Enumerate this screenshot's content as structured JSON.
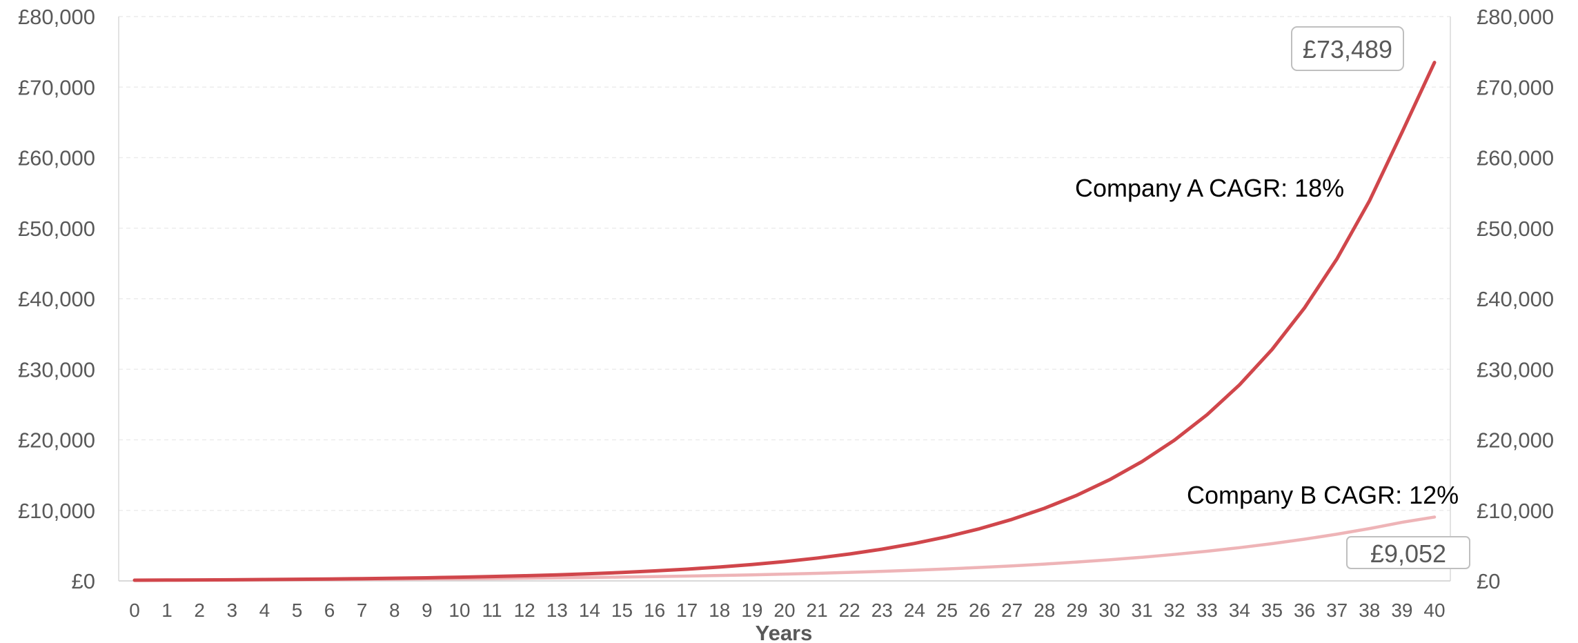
{
  "chart_data": {
    "type": "line",
    "xlabel": "Years",
    "ylim": [
      0,
      80000
    ],
    "yticks": [
      "£0",
      "£10,000",
      "£20,000",
      "£30,000",
      "£40,000",
      "£50,000",
      "£60,000",
      "£70,000",
      "£80,000"
    ],
    "y2ticks": [
      "£0",
      "£10,000",
      "£20,000",
      "£30,000",
      "£40,000",
      "£50,000",
      "£60,000",
      "£70,000",
      "£80,000"
    ],
    "x": [
      0,
      1,
      2,
      3,
      4,
      5,
      6,
      7,
      8,
      9,
      10,
      11,
      12,
      13,
      14,
      15,
      16,
      17,
      18,
      19,
      20,
      21,
      22,
      23,
      24,
      25,
      26,
      27,
      28,
      29,
      30,
      31,
      32,
      33,
      34,
      35,
      36,
      37,
      38,
      39,
      40
    ],
    "grid": true,
    "series": [
      {
        "name": "Company A CAGR: 18%",
        "color": "#d0464b",
        "values": [
          100,
          118,
          139,
          164,
          194,
          229,
          270,
          319,
          376,
          444,
          523,
          618,
          729,
          860,
          1015,
          1197,
          1413,
          1667,
          1967,
          2321,
          2739,
          3232,
          3814,
          4500,
          5310,
          6266,
          7394,
          8725,
          10295,
          12148,
          14335,
          16915,
          19960,
          23553,
          27792,
          32795,
          38698,
          45664,
          53883,
          63582,
          73489
        ]
      },
      {
        "name": "Company B CAGR: 12%",
        "color": "#eeb4b7",
        "values": [
          100,
          112,
          125,
          140,
          157,
          176,
          197,
          221,
          248,
          277,
          311,
          348,
          390,
          436,
          489,
          547,
          613,
          687,
          769,
          861,
          965,
          1080,
          1210,
          1355,
          1518,
          1700,
          1904,
          2132,
          2388,
          2675,
          2996,
          3355,
          3758,
          4209,
          4714,
          5280,
          5914,
          6623,
          7418,
          8308,
          9052
        ]
      }
    ],
    "annotations": [
      {
        "text": "Company A CAGR: 18%"
      },
      {
        "text": "Company B CAGR: 12%"
      }
    ],
    "end_labels": [
      "£73,489",
      "£9,052"
    ]
  }
}
